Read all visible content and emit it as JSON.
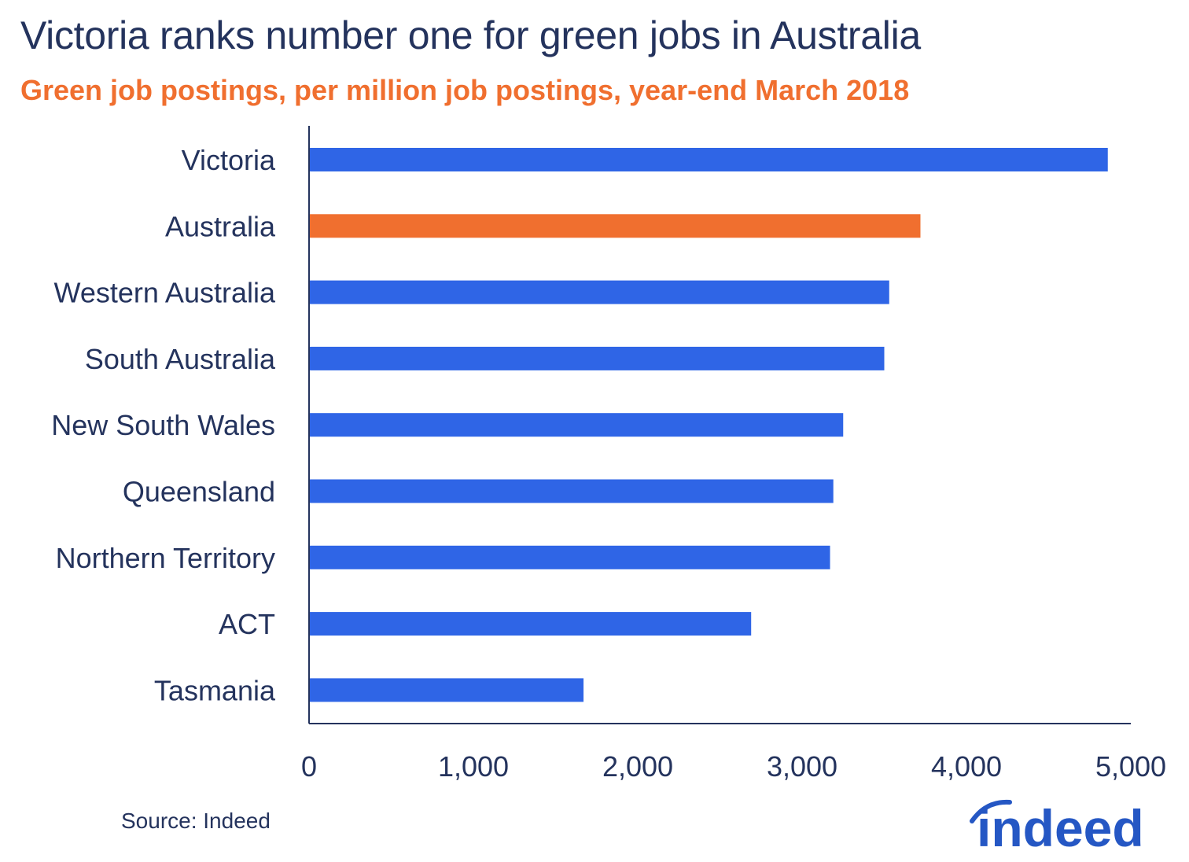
{
  "title": "Victoria ranks number one for green jobs in Australia",
  "subtitle": "Green job postings, per million job postings, year-end March 2018",
  "source": "Source: Indeed",
  "logo": {
    "text": "indeed",
    "color": "#2557c4"
  },
  "colors": {
    "bar_default": "#2f65e6",
    "bar_highlight": "#f06f2f",
    "text": "#24335d",
    "axis": "#24335d"
  },
  "chart_data": {
    "type": "bar",
    "orientation": "horizontal",
    "title": "Victoria ranks number one for green jobs in Australia",
    "subtitle": "Green job postings, per million job postings, year-end March 2018",
    "xlabel": "",
    "ylabel": "",
    "xlim": [
      0,
      5000
    ],
    "xticks": [
      0,
      1000,
      2000,
      3000,
      4000,
      5000
    ],
    "xtick_labels": [
      "0",
      "1,000",
      "2,000",
      "3,000",
      "4,000",
      "5,000"
    ],
    "grid": false,
    "legend": "none",
    "categories": [
      "Victoria",
      "Australia",
      "Western Australia",
      "South Australia",
      "New South Wales",
      "Queensland",
      "Northern Territory",
      "ACT",
      "Tasmania"
    ],
    "values": [
      4860,
      3720,
      3530,
      3500,
      3250,
      3190,
      3170,
      2690,
      1670
    ],
    "highlight": [
      "Australia"
    ]
  }
}
